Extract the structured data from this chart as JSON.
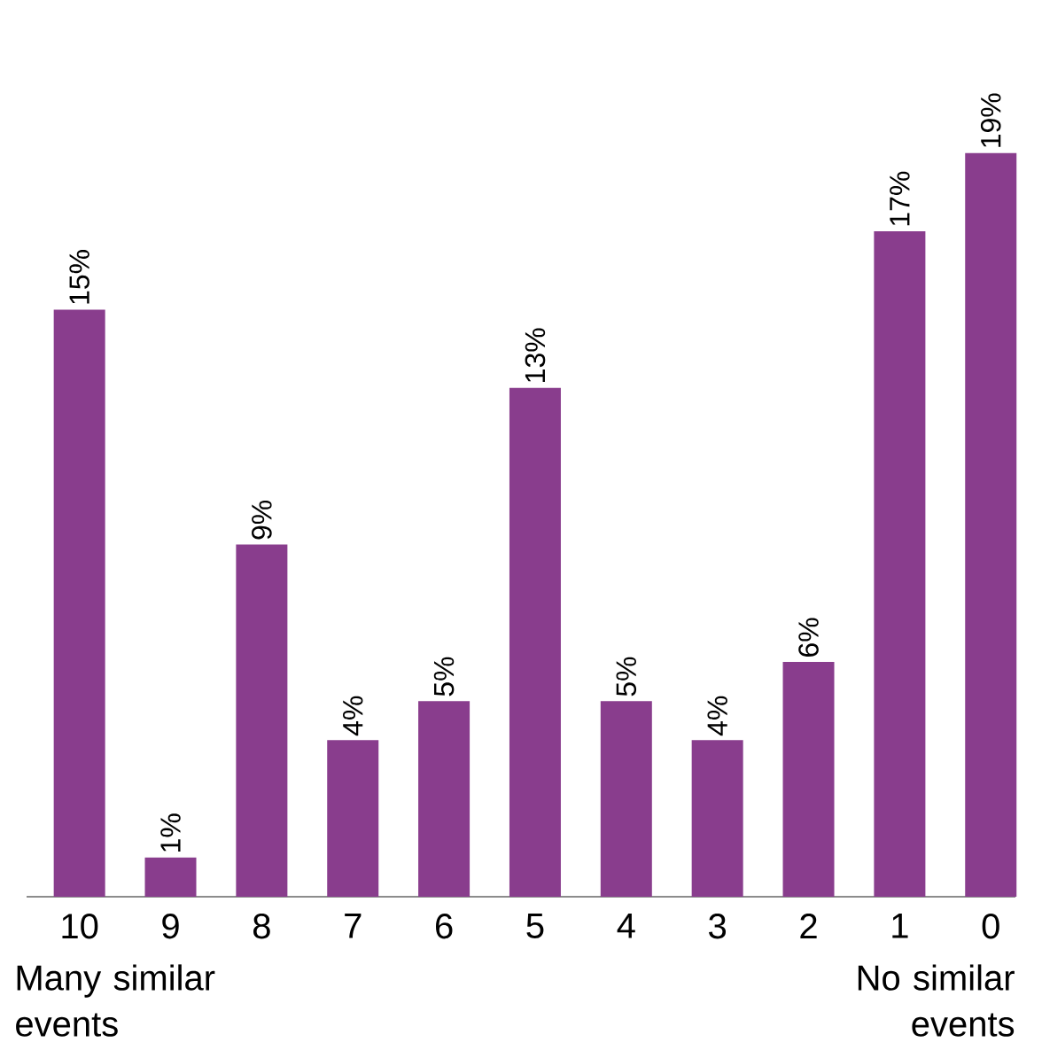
{
  "chart_data": {
    "type": "bar",
    "categories": [
      "10",
      "9",
      "8",
      "7",
      "6",
      "5",
      "4",
      "3",
      "2",
      "1",
      "0"
    ],
    "values": [
      15,
      1,
      9,
      4,
      5,
      13,
      5,
      4,
      6,
      17,
      19
    ],
    "value_labels": [
      "15%",
      "1%",
      "9%",
      "4%",
      "5%",
      "13%",
      "5%",
      "4%",
      "6%",
      "17%",
      "19%"
    ],
    "color": "#893d8d",
    "annotations": [
      "Many similar events",
      "No similar events"
    ]
  }
}
